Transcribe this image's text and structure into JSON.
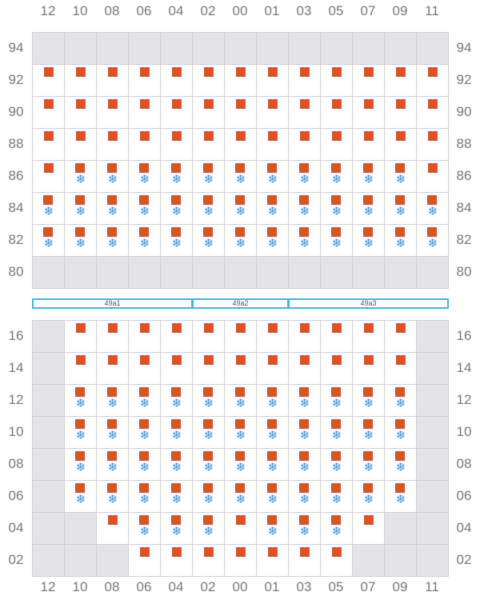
{
  "colors": {
    "marker": "#d9522b",
    "reefer": "#3a8fd8",
    "empty_cell": "#e4e4e6",
    "grid_line": "#cfcfcf",
    "section_border": "#4ab5d6",
    "label_text": "#777777"
  },
  "icons": {
    "marker": "square-marker-icon",
    "reefer": "snowflake-icon",
    "reefer_glyph": "❄"
  },
  "columns": [
    "12",
    "10",
    "08",
    "06",
    "04",
    "02",
    "00",
    "01",
    "03",
    "05",
    "07",
    "09",
    "11"
  ],
  "upper_grid": {
    "rows": [
      {
        "label": "94",
        "cells": [
          "E",
          "E",
          "E",
          "E",
          "E",
          "E",
          "E",
          "E",
          "E",
          "E",
          "E",
          "E",
          "E"
        ]
      },
      {
        "label": "92",
        "cells": [
          "M",
          "M",
          "M",
          "M",
          "M",
          "M",
          "M",
          "M",
          "M",
          "M",
          "M",
          "M",
          "M"
        ]
      },
      {
        "label": "90",
        "cells": [
          "M",
          "M",
          "M",
          "M",
          "M",
          "M",
          "M",
          "M",
          "M",
          "M",
          "M",
          "M",
          "M"
        ]
      },
      {
        "label": "88",
        "cells": [
          "M",
          "M",
          "M",
          "M",
          "M",
          "M",
          "M",
          "M",
          "M",
          "M",
          "M",
          "M",
          "M"
        ]
      },
      {
        "label": "86",
        "cells": [
          "M",
          "MR",
          "MR",
          "MR",
          "MR",
          "MR",
          "MR",
          "MR",
          "MR",
          "MR",
          "MR",
          "MR",
          "M"
        ]
      },
      {
        "label": "84",
        "cells": [
          "MR",
          "MR",
          "MR",
          "MR",
          "MR",
          "MR",
          "MR",
          "MR",
          "MR",
          "MR",
          "MR",
          "MR",
          "MR"
        ]
      },
      {
        "label": "82",
        "cells": [
          "MR",
          "MR",
          "MR",
          "MR",
          "MR",
          "MR",
          "MR",
          "MR",
          "MR",
          "MR",
          "MR",
          "MR",
          "MR"
        ]
      },
      {
        "label": "80",
        "cells": [
          "E",
          "E",
          "E",
          "E",
          "E",
          "E",
          "E",
          "E",
          "E",
          "E",
          "E",
          "E",
          "E"
        ]
      }
    ]
  },
  "sections": [
    {
      "label": "49a1",
      "from_col": 0,
      "to_col": 5
    },
    {
      "label": "49a2",
      "from_col": 5,
      "to_col": 8
    },
    {
      "label": "49a3",
      "from_col": 8,
      "to_col": 13
    }
  ],
  "lower_grid": {
    "rows": [
      {
        "label": "16",
        "cells": [
          "E",
          "M",
          "M",
          "M",
          "M",
          "M",
          "M",
          "M",
          "M",
          "M",
          "M",
          "M",
          "E"
        ]
      },
      {
        "label": "14",
        "cells": [
          "E",
          "M",
          "M",
          "M",
          "M",
          "M",
          "M",
          "M",
          "M",
          "M",
          "M",
          "M",
          "E"
        ]
      },
      {
        "label": "12",
        "cells": [
          "E",
          "MR",
          "MR",
          "MR",
          "MR",
          "MR",
          "MR",
          "MR",
          "MR",
          "MR",
          "MR",
          "MR",
          "E"
        ]
      },
      {
        "label": "10",
        "cells": [
          "E",
          "MR",
          "MR",
          "MR",
          "MR",
          "MR",
          "MR",
          "MR",
          "MR",
          "MR",
          "MR",
          "MR",
          "E"
        ]
      },
      {
        "label": "08",
        "cells": [
          "E",
          "MR",
          "MR",
          "MR",
          "MR",
          "MR",
          "MR",
          "MR",
          "MR",
          "MR",
          "MR",
          "MR",
          "E"
        ]
      },
      {
        "label": "06",
        "cells": [
          "E",
          "MR",
          "MR",
          "MR",
          "MR",
          "MR",
          "MR",
          "MR",
          "MR",
          "MR",
          "MR",
          "MR",
          "E"
        ]
      },
      {
        "label": "04",
        "cells": [
          "E",
          "E",
          "M",
          "MR",
          "MR",
          "MR",
          "M",
          "MR",
          "MR",
          "MR",
          "M",
          "E",
          "E"
        ]
      },
      {
        "label": "02",
        "cells": [
          "E",
          "E",
          "E",
          "M",
          "M",
          "M",
          "M",
          "M",
          "M",
          "M",
          "E",
          "E",
          "E"
        ]
      }
    ]
  }
}
